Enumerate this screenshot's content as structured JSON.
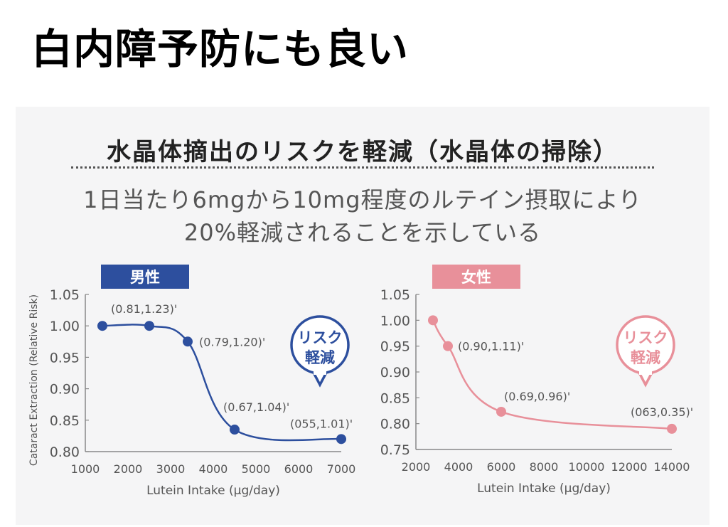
{
  "page_title": "白内障予防にも良い",
  "panel": {
    "title": "水晶体摘出のリスクを軽減（水晶体の掃除）",
    "desc_line1": "1日当たり6mgから10mg程度のルテイン摂取により",
    "desc_line2": "20%軽減されることを示している"
  },
  "colors": {
    "male": "#2d4f9e",
    "female": "#e8909a"
  },
  "chart_data": [
    {
      "type": "line",
      "title": "男性",
      "xlabel": "Lutein Intake (μg/day)",
      "ylabel": "Cataract Extraction (Relative Risk)",
      "xlim": [
        1000,
        7000
      ],
      "ylim": [
        0.8,
        1.05
      ],
      "xticks": [
        1000,
        2000,
        3000,
        4000,
        5000,
        6000,
        7000
      ],
      "yticks": [
        "1.05",
        "1.00",
        "0.95",
        "0.90",
        "0.85",
        "0.80"
      ],
      "x": [
        1400,
        2500,
        3400,
        4500,
        7000
      ],
      "y": [
        1.0,
        1.0,
        0.975,
        0.835,
        0.82
      ],
      "labels": [
        "",
        "(0.81,1.23)'",
        "(0.79,1.20)'",
        "(0.67,1.04)'",
        "(055,1.01)'"
      ],
      "badge": [
        "リスク",
        "軽減"
      ]
    },
    {
      "type": "line",
      "title": "女性",
      "xlabel": "Lutein Intake (μg/day)",
      "xlim": [
        2000,
        14000
      ],
      "ylim": [
        0.75,
        1.05
      ],
      "xticks": [
        2000,
        4000,
        6000,
        8000,
        10000,
        12000,
        14000
      ],
      "yticks": [
        "1.05",
        "1.00",
        "0.95",
        "0.90",
        "0.85",
        "0.80",
        "0.75"
      ],
      "x": [
        2800,
        3500,
        6000,
        14000
      ],
      "y": [
        1.0,
        0.95,
        0.823,
        0.79
      ],
      "labels": [
        "",
        "(0.90,1.11)'",
        "(0.69,0.96)'",
        "(063,0.35)'"
      ],
      "badge": [
        "リスク",
        "軽減"
      ]
    }
  ]
}
